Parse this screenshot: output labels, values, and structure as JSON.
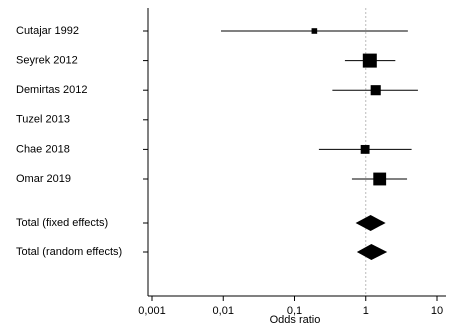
{
  "chart_data": {
    "type": "forest",
    "xlabel": "Odds ratio",
    "log_scale": true,
    "color": "#000000",
    "xlim": [
      0.001,
      10
    ],
    "xticks": [
      {
        "value": 0.001,
        "label": "0,001"
      },
      {
        "value": 0.01,
        "label": "0,01"
      },
      {
        "value": 0.1,
        "label": "0,1"
      },
      1,
      10
    ],
    "reference_line": 1,
    "studies": {
      "labels": [
        "Cutajar 1992",
        "Seyrek 2012",
        "Demirtas 2012",
        "Tuzel 2013",
        "Chae 2018",
        "Omar 2019"
      ],
      "estimate": [
        0.19,
        1.14,
        1.38,
        null,
        0.98,
        1.57
      ],
      "lower": [
        0.0093,
        0.51,
        0.34,
        null,
        0.22,
        0.64
      ],
      "upper": [
        3.9,
        2.6,
        5.4,
        null,
        4.4,
        3.8
      ],
      "weight": [
        4,
        25,
        13,
        null,
        10,
        21
      ]
    },
    "summaries": {
      "labels": [
        "Total (fixed effects)",
        "Total (random effects)"
      ],
      "estimate": [
        1.17,
        1.2
      ],
      "lower": [
        0.72,
        0.75
      ],
      "upper": [
        1.9,
        2.0
      ]
    }
  }
}
